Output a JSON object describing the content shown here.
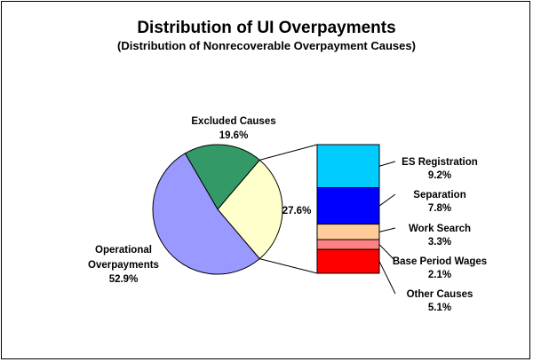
{
  "chart_data": {
    "type": "pie",
    "title": "Distribution of UI Overpayments",
    "subtitle": "(Distribution of Nonrecoverable Overpayment Causes)",
    "pie": {
      "slices": [
        {
          "label": "Excluded Causes",
          "value": 19.6,
          "value_label": "19.6%",
          "color": "#339966"
        },
        {
          "label": "",
          "value": 27.6,
          "value_label": "27.6%",
          "color": "#FFFFCC"
        },
        {
          "label": "Operational Overpayments",
          "label_lines": [
            "Operational",
            "Overpayments"
          ],
          "value": 52.9,
          "value_label": "52.9%",
          "color": "#9999FF"
        }
      ]
    },
    "breakdown": {
      "type": "stacked-bar",
      "parent_value_label": "27.6%",
      "segments": [
        {
          "label": "ES Registration",
          "value": 9.2,
          "value_label": "9.2%",
          "color": "#00CCFF"
        },
        {
          "label": "Separation",
          "value": 7.8,
          "value_label": "7.8%",
          "color": "#0000FF"
        },
        {
          "label": "Work Search",
          "value": 3.3,
          "value_label": "3.3%",
          "color": "#FFCC99"
        },
        {
          "label": "Base Period Wages",
          "value": 2.1,
          "value_label": "2.1%",
          "color": "#FF8080"
        },
        {
          "label": "Other Causes",
          "value": 5.1,
          "value_label": "5.1%",
          "color": "#FF0000"
        }
      ]
    }
  }
}
